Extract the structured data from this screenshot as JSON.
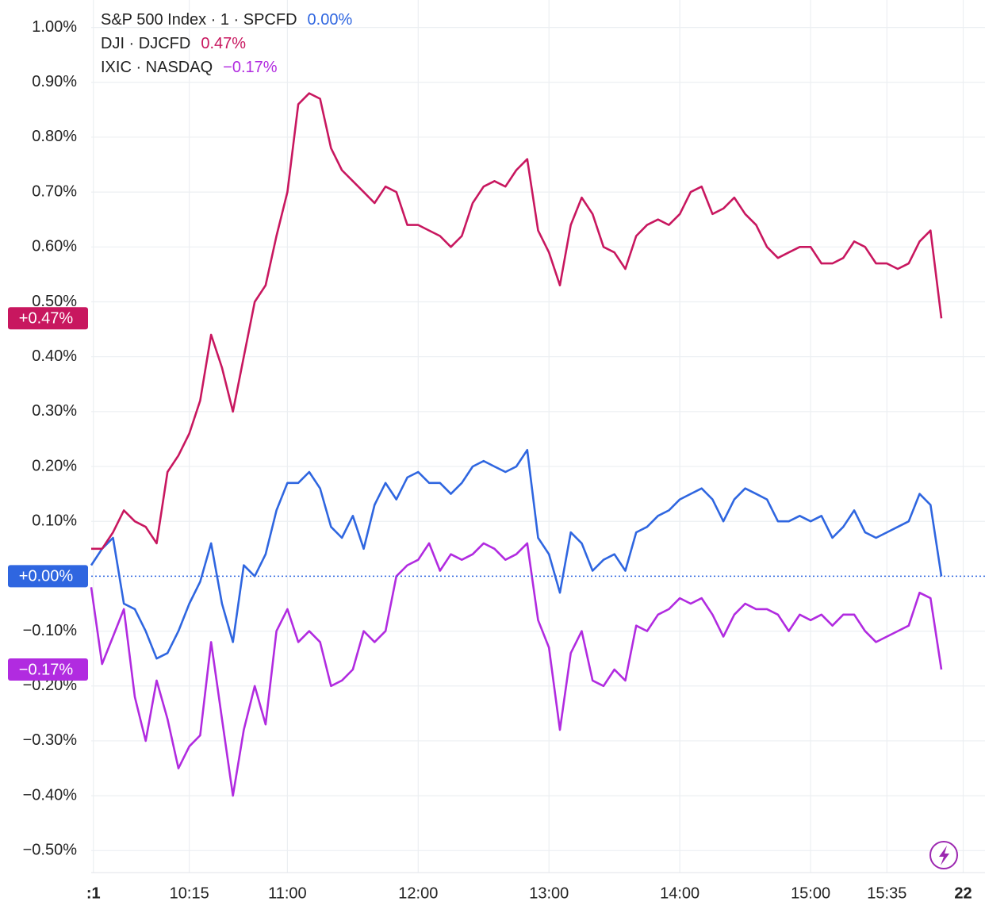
{
  "chart_data": {
    "type": "line",
    "x": [
      570,
      575,
      580,
      585,
      590,
      595,
      600,
      605,
      610,
      615,
      620,
      625,
      630,
      635,
      640,
      645,
      650,
      655,
      660,
      665,
      670,
      675,
      680,
      685,
      690,
      695,
      700,
      705,
      710,
      715,
      720,
      725,
      730,
      735,
      740,
      745,
      750,
      755,
      760,
      765,
      770,
      775,
      780,
      785,
      790,
      795,
      800,
      805,
      810,
      815,
      820,
      825,
      830,
      835,
      840,
      845,
      850,
      855,
      860,
      865,
      870,
      875,
      880,
      885,
      890,
      895,
      900,
      905,
      910,
      915,
      920,
      925,
      930,
      935,
      940,
      945,
      950,
      955,
      960
    ],
    "series": [
      {
        "name": "S&P 500 Index · 1 · SPCFD",
        "color": "#2f66e0",
        "legend_value": "0.00%",
        "badge": "+0.00%",
        "values": [
          0.02,
          0.05,
          0.07,
          -0.05,
          -0.06,
          -0.1,
          -0.15,
          -0.14,
          -0.1,
          -0.05,
          -0.01,
          0.06,
          -0.05,
          -0.12,
          0.02,
          0.0,
          0.04,
          0.12,
          0.17,
          0.17,
          0.19,
          0.16,
          0.09,
          0.07,
          0.11,
          0.05,
          0.13,
          0.17,
          0.14,
          0.18,
          0.19,
          0.17,
          0.17,
          0.15,
          0.17,
          0.2,
          0.21,
          0.2,
          0.19,
          0.2,
          0.23,
          0.07,
          0.04,
          -0.03,
          0.08,
          0.06,
          0.01,
          0.03,
          0.04,
          0.01,
          0.08,
          0.09,
          0.11,
          0.12,
          0.14,
          0.15,
          0.16,
          0.14,
          0.1,
          0.14,
          0.16,
          0.15,
          0.14,
          0.1,
          0.1,
          0.11,
          0.1,
          0.11,
          0.07,
          0.09,
          0.12,
          0.08,
          0.07,
          0.08,
          0.09,
          0.1,
          0.15,
          0.13,
          0.0
        ]
      },
      {
        "name": "DJI · DJCFD",
        "color": "#c8175f",
        "legend_value": "0.47%",
        "badge": "+0.47%",
        "values": [
          0.05,
          0.05,
          0.08,
          0.12,
          0.1,
          0.09,
          0.06,
          0.19,
          0.22,
          0.26,
          0.32,
          0.44,
          0.38,
          0.3,
          0.4,
          0.5,
          0.53,
          0.62,
          0.7,
          0.86,
          0.88,
          0.87,
          0.78,
          0.74,
          0.72,
          0.7,
          0.68,
          0.71,
          0.7,
          0.64,
          0.64,
          0.63,
          0.62,
          0.6,
          0.62,
          0.68,
          0.71,
          0.72,
          0.71,
          0.74,
          0.76,
          0.63,
          0.59,
          0.53,
          0.64,
          0.69,
          0.66,
          0.6,
          0.59,
          0.56,
          0.62,
          0.64,
          0.65,
          0.64,
          0.66,
          0.7,
          0.71,
          0.66,
          0.67,
          0.69,
          0.66,
          0.64,
          0.6,
          0.58,
          0.59,
          0.6,
          0.6,
          0.57,
          0.57,
          0.58,
          0.61,
          0.6,
          0.57,
          0.57,
          0.56,
          0.57,
          0.61,
          0.63,
          0.47
        ]
      },
      {
        "name": "IXIC · NASDAQ",
        "color": "#b12be0",
        "legend_value": "−0.17%",
        "badge": "−0.17%",
        "values": [
          -0.02,
          -0.16,
          -0.11,
          -0.06,
          -0.22,
          -0.3,
          -0.19,
          -0.26,
          -0.35,
          -0.31,
          -0.29,
          -0.12,
          -0.26,
          -0.4,
          -0.28,
          -0.2,
          -0.27,
          -0.1,
          -0.06,
          -0.12,
          -0.1,
          -0.12,
          -0.2,
          -0.19,
          -0.17,
          -0.1,
          -0.12,
          -0.1,
          0.0,
          0.02,
          0.03,
          0.06,
          0.01,
          0.04,
          0.03,
          0.04,
          0.06,
          0.05,
          0.03,
          0.04,
          0.06,
          -0.08,
          -0.13,
          -0.28,
          -0.14,
          -0.1,
          -0.19,
          -0.2,
          -0.17,
          -0.19,
          -0.09,
          -0.1,
          -0.07,
          -0.06,
          -0.04,
          -0.05,
          -0.04,
          -0.07,
          -0.11,
          -0.07,
          -0.05,
          -0.06,
          -0.06,
          -0.07,
          -0.1,
          -0.07,
          -0.08,
          -0.07,
          -0.09,
          -0.07,
          -0.07,
          -0.1,
          -0.12,
          -0.11,
          -0.1,
          -0.09,
          -0.03,
          -0.04,
          -0.17
        ]
      }
    ],
    "xlim": [
      570,
      980
    ],
    "xticks": [
      {
        "value": 571,
        "label": ":1"
      },
      {
        "value": 615,
        "label": "10:15"
      },
      {
        "value": 660,
        "label": "11:00"
      },
      {
        "value": 720,
        "label": "12:00"
      },
      {
        "value": 780,
        "label": "13:00"
      },
      {
        "value": 840,
        "label": "14:00"
      },
      {
        "value": 900,
        "label": "15:00"
      },
      {
        "value": 935,
        "label": "15:35"
      },
      {
        "value": 970,
        "label": "22"
      }
    ],
    "ylim": [
      -0.54,
      1.05
    ],
    "yticks": [
      {
        "value": 1.0,
        "label": "1.00%"
      },
      {
        "value": 0.9,
        "label": "0.90%"
      },
      {
        "value": 0.8,
        "label": "0.80%"
      },
      {
        "value": 0.7,
        "label": "0.70%"
      },
      {
        "value": 0.6,
        "label": "0.60%"
      },
      {
        "value": 0.5,
        "label": "0.50%"
      },
      {
        "value": 0.4,
        "label": "0.40%"
      },
      {
        "value": 0.3,
        "label": "0.30%"
      },
      {
        "value": 0.2,
        "label": "0.20%"
      },
      {
        "value": 0.1,
        "label": "0.10%"
      },
      {
        "value": -0.1,
        "label": "−0.10%"
      },
      {
        "value": -0.2,
        "label": "−0.20%"
      },
      {
        "value": -0.3,
        "label": "−0.30%"
      },
      {
        "value": -0.4,
        "label": "−0.40%"
      },
      {
        "value": -0.5,
        "label": "−0.50%"
      }
    ],
    "grid": true
  }
}
